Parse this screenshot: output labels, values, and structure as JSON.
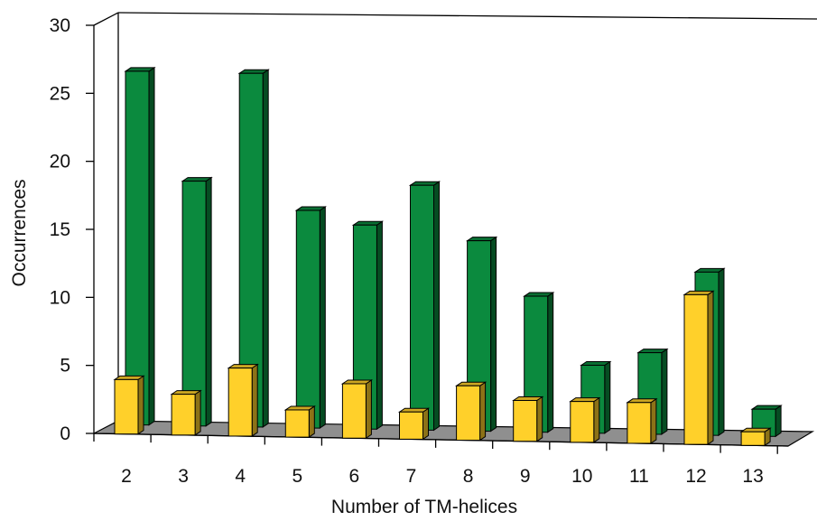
{
  "chart_data": {
    "type": "bar",
    "style": "3d",
    "categories": [
      "2",
      "3",
      "4",
      "5",
      "6",
      "7",
      "8",
      "9",
      "10",
      "11",
      "12",
      "13"
    ],
    "series": [
      {
        "values": [
          26,
          18,
          26,
          16,
          15,
          18,
          14,
          10,
          5,
          6,
          12,
          2
        ]
      },
      {
        "values": [
          4,
          3,
          5,
          2,
          4,
          2,
          4,
          3,
          3,
          3,
          11,
          1
        ]
      }
    ],
    "colors": {
      "back_series": "#0b8a3e",
      "front_series": "#ffd02a",
      "floor": "#8f8f8f"
    },
    "xlabel": "Number of TM-helices",
    "ylabel": "Occurrences",
    "ylim": [
      0,
      30
    ],
    "yticks": [
      "0",
      "5",
      "10",
      "15",
      "20",
      "25",
      "30"
    ],
    "grid": false,
    "legend": "none"
  }
}
